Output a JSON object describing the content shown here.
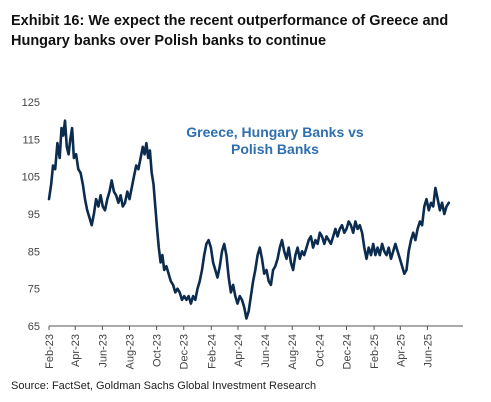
{
  "exhibit": {
    "title": "Exhibit 16: We expect the recent outperformance of Greece and Hungary banks over Polish banks to continue"
  },
  "source": "Source: FactSet, Goldman Sachs Global Investment Research",
  "colors": {
    "line": "#0b2c4e",
    "annotation": "#2f6fb0",
    "axis": "#555555",
    "text": "#444444"
  },
  "chart_data": {
    "type": "line",
    "title": "",
    "annotation": [
      "Greece, Hungary Banks vs",
      "Polish Banks"
    ],
    "xlabel": "",
    "ylabel": "",
    "ylim": [
      65,
      125
    ],
    "yticks": [
      65,
      75,
      85,
      95,
      105,
      115,
      125
    ],
    "xlim": [
      "2023-02-01",
      "2025-08-20"
    ],
    "xticks": [
      "Feb-23",
      "Apr-23",
      "Jun-23",
      "Aug-23",
      "Oct-23",
      "Dec-23",
      "Feb-24",
      "Apr-24",
      "Jun-24",
      "Aug-24",
      "Oct-24",
      "Dec-24",
      "Feb-25",
      "Apr-25",
      "Jun-25"
    ],
    "xtick_dates": [
      "2023-02-01",
      "2023-04-01",
      "2023-06-01",
      "2023-08-01",
      "2023-10-01",
      "2023-12-01",
      "2024-02-01",
      "2024-04-01",
      "2024-06-01",
      "2024-08-01",
      "2024-10-01",
      "2024-12-01",
      "2025-02-01",
      "2025-04-01",
      "2025-06-01"
    ],
    "grid": false,
    "legend": "none",
    "series": [
      {
        "points": [
          [
            "2023-02-01",
            99
          ],
          [
            "2023-02-06",
            103
          ],
          [
            "2023-02-10",
            108
          ],
          [
            "2023-02-15",
            107
          ],
          [
            "2023-02-20",
            114
          ],
          [
            "2023-02-25",
            110
          ],
          [
            "2023-03-01",
            118
          ],
          [
            "2023-03-05",
            116
          ],
          [
            "2023-03-09",
            120
          ],
          [
            "2023-03-13",
            113
          ],
          [
            "2023-03-17",
            111
          ],
          [
            "2023-03-21",
            115
          ],
          [
            "2023-03-25",
            118
          ],
          [
            "2023-03-29",
            110
          ],
          [
            "2023-04-03",
            111
          ],
          [
            "2023-04-08",
            107
          ],
          [
            "2023-04-13",
            106
          ],
          [
            "2023-04-18",
            103
          ],
          [
            "2023-04-23",
            99
          ],
          [
            "2023-04-28",
            96
          ],
          [
            "2023-05-03",
            94
          ],
          [
            "2023-05-08",
            92
          ],
          [
            "2023-05-13",
            95
          ],
          [
            "2023-05-18",
            99
          ],
          [
            "2023-05-23",
            97
          ],
          [
            "2023-05-28",
            100
          ],
          [
            "2023-06-02",
            97
          ],
          [
            "2023-06-07",
            96
          ],
          [
            "2023-06-12",
            99
          ],
          [
            "2023-06-17",
            101
          ],
          [
            "2023-06-22",
            104
          ],
          [
            "2023-06-27",
            101
          ],
          [
            "2023-07-02",
            100
          ],
          [
            "2023-07-07",
            98
          ],
          [
            "2023-07-12",
            100
          ],
          [
            "2023-07-17",
            97
          ],
          [
            "2023-07-22",
            98
          ],
          [
            "2023-07-27",
            101
          ],
          [
            "2023-08-01",
            99
          ],
          [
            "2023-08-06",
            102
          ],
          [
            "2023-08-11",
            105
          ],
          [
            "2023-08-16",
            108
          ],
          [
            "2023-08-21",
            107
          ],
          [
            "2023-08-26",
            110
          ],
          [
            "2023-08-31",
            113
          ],
          [
            "2023-09-04",
            111
          ],
          [
            "2023-09-08",
            114
          ],
          [
            "2023-09-12",
            110
          ],
          [
            "2023-09-16",
            112
          ],
          [
            "2023-09-20",
            106
          ],
          [
            "2023-09-24",
            103
          ],
          [
            "2023-09-28",
            97
          ],
          [
            "2023-10-02",
            91
          ],
          [
            "2023-10-06",
            86
          ],
          [
            "2023-10-10",
            82
          ],
          [
            "2023-10-14",
            84
          ],
          [
            "2023-10-18",
            80
          ],
          [
            "2023-10-23",
            81
          ],
          [
            "2023-10-28",
            79
          ],
          [
            "2023-11-02",
            77
          ],
          [
            "2023-11-07",
            76
          ],
          [
            "2023-11-12",
            74
          ],
          [
            "2023-11-17",
            75
          ],
          [
            "2023-11-22",
            74
          ],
          [
            "2023-11-27",
            72
          ],
          [
            "2023-12-02",
            73
          ],
          [
            "2023-12-07",
            72
          ],
          [
            "2023-12-12",
            73
          ],
          [
            "2023-12-17",
            71
          ],
          [
            "2023-12-22",
            73
          ],
          [
            "2023-12-27",
            72
          ],
          [
            "2024-01-01",
            75
          ],
          [
            "2024-01-06",
            77
          ],
          [
            "2024-01-11",
            80
          ],
          [
            "2024-01-16",
            84
          ],
          [
            "2024-01-21",
            87
          ],
          [
            "2024-01-26",
            88
          ],
          [
            "2024-01-31",
            86
          ],
          [
            "2024-02-05",
            82
          ],
          [
            "2024-02-10",
            80
          ],
          [
            "2024-02-15",
            78
          ],
          [
            "2024-02-20",
            81
          ],
          [
            "2024-02-25",
            85
          ],
          [
            "2024-03-01",
            87
          ],
          [
            "2024-03-06",
            84
          ],
          [
            "2024-03-11",
            78
          ],
          [
            "2024-03-16",
            74
          ],
          [
            "2024-03-21",
            76
          ],
          [
            "2024-03-26",
            73
          ],
          [
            "2024-03-31",
            71
          ],
          [
            "2024-04-05",
            73
          ],
          [
            "2024-04-10",
            72
          ],
          [
            "2024-04-15",
            70
          ],
          [
            "2024-04-20",
            67
          ],
          [
            "2024-04-25",
            69
          ],
          [
            "2024-04-30",
            73
          ],
          [
            "2024-05-05",
            77
          ],
          [
            "2024-05-10",
            80
          ],
          [
            "2024-05-15",
            84
          ],
          [
            "2024-05-20",
            86
          ],
          [
            "2024-05-25",
            83
          ],
          [
            "2024-05-30",
            79
          ],
          [
            "2024-06-04",
            80
          ],
          [
            "2024-06-09",
            77
          ],
          [
            "2024-06-14",
            76
          ],
          [
            "2024-06-19",
            80
          ],
          [
            "2024-06-24",
            81
          ],
          [
            "2024-06-29",
            83
          ],
          [
            "2024-07-04",
            86
          ],
          [
            "2024-07-09",
            88
          ],
          [
            "2024-07-14",
            85
          ],
          [
            "2024-07-19",
            83
          ],
          [
            "2024-07-24",
            86
          ],
          [
            "2024-07-29",
            82
          ],
          [
            "2024-08-03",
            80
          ],
          [
            "2024-08-08",
            84
          ],
          [
            "2024-08-13",
            86
          ],
          [
            "2024-08-18",
            83
          ],
          [
            "2024-08-23",
            85
          ],
          [
            "2024-08-28",
            84
          ],
          [
            "2024-09-02",
            86
          ],
          [
            "2024-09-07",
            88
          ],
          [
            "2024-09-12",
            89
          ],
          [
            "2024-09-17",
            86
          ],
          [
            "2024-09-22",
            88
          ],
          [
            "2024-09-27",
            87
          ],
          [
            "2024-10-02",
            90
          ],
          [
            "2024-10-07",
            89
          ],
          [
            "2024-10-12",
            87
          ],
          [
            "2024-10-17",
            89
          ],
          [
            "2024-10-22",
            88
          ],
          [
            "2024-10-27",
            87
          ],
          [
            "2024-11-01",
            89
          ],
          [
            "2024-11-06",
            91
          ],
          [
            "2024-11-11",
            89
          ],
          [
            "2024-11-16",
            91
          ],
          [
            "2024-11-21",
            92
          ],
          [
            "2024-11-26",
            90
          ],
          [
            "2024-12-01",
            91
          ],
          [
            "2024-12-06",
            93
          ],
          [
            "2024-12-11",
            92
          ],
          [
            "2024-12-16",
            90
          ],
          [
            "2024-12-21",
            93
          ],
          [
            "2024-12-26",
            91
          ],
          [
            "2024-12-31",
            92
          ],
          [
            "2025-01-05",
            90
          ],
          [
            "2025-01-10",
            86
          ],
          [
            "2025-01-15",
            83
          ],
          [
            "2025-01-20",
            86
          ],
          [
            "2025-01-25",
            84
          ],
          [
            "2025-01-30",
            87
          ],
          [
            "2025-02-04",
            84
          ],
          [
            "2025-02-09",
            86
          ],
          [
            "2025-02-14",
            84
          ],
          [
            "2025-02-19",
            87
          ],
          [
            "2025-02-24",
            85
          ],
          [
            "2025-03-01",
            84
          ],
          [
            "2025-03-06",
            86
          ],
          [
            "2025-03-11",
            83
          ],
          [
            "2025-03-16",
            85
          ],
          [
            "2025-03-21",
            87
          ],
          [
            "2025-03-26",
            85
          ],
          [
            "2025-03-31",
            83
          ],
          [
            "2025-04-05",
            81
          ],
          [
            "2025-04-10",
            79
          ],
          [
            "2025-04-15",
            80
          ],
          [
            "2025-04-20",
            85
          ],
          [
            "2025-04-25",
            88
          ],
          [
            "2025-04-30",
            90
          ],
          [
            "2025-05-05",
            88
          ],
          [
            "2025-05-10",
            91
          ],
          [
            "2025-05-15",
            93
          ],
          [
            "2025-05-20",
            92
          ],
          [
            "2025-05-25",
            97
          ],
          [
            "2025-05-30",
            99
          ],
          [
            "2025-06-04",
            96
          ],
          [
            "2025-06-09",
            98
          ],
          [
            "2025-06-14",
            97
          ],
          [
            "2025-06-19",
            102
          ],
          [
            "2025-06-24",
            99
          ],
          [
            "2025-06-29",
            96
          ],
          [
            "2025-07-04",
            98
          ],
          [
            "2025-07-09",
            95
          ],
          [
            "2025-07-14",
            97
          ],
          [
            "2025-07-19",
            98
          ]
        ]
      }
    ]
  }
}
